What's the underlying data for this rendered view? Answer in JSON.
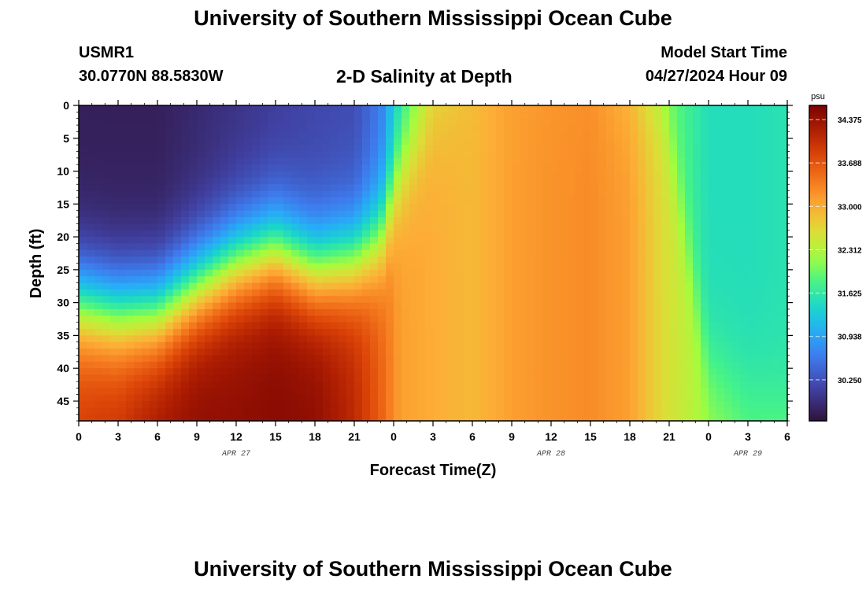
{
  "page": {
    "title": "University of Southern Mississippi Ocean Cube",
    "footer_title": "University of Southern Mississippi Ocean Cube",
    "station": "USMR1",
    "coords": "30.0770N  88.5830W",
    "plot_title": "2-D Salinity at Depth",
    "model_start_label": "Model Start Time",
    "model_start_value": "04/27/2024 Hour 09"
  },
  "chart_data": {
    "type": "heatmap",
    "xlabel": "Forecast Time(Z)",
    "ylabel": "Depth (ft)",
    "ylim": [
      0,
      48
    ],
    "y_ticks": [
      0,
      5,
      10,
      15,
      20,
      25,
      30,
      35,
      40,
      45
    ],
    "x_hours": [
      0,
      54
    ],
    "x_ticks": [
      "0",
      "3",
      "6",
      "9",
      "12",
      "15",
      "18",
      "21",
      "0",
      "3",
      "6",
      "9",
      "12",
      "15",
      "18",
      "21",
      "0",
      "3",
      "6"
    ],
    "date_labels": [
      {
        "label": "APR 27",
        "hour": 12
      },
      {
        "label": "APR 28",
        "hour": 36
      },
      {
        "label": "APR 29",
        "hour": 51
      }
    ],
    "colorbar": {
      "unit": "psu",
      "min": 29.6,
      "max": 34.6,
      "ticks": [
        "34.375",
        "33.688",
        "33.000",
        "32.312",
        "31.625",
        "30.938",
        "30.250"
      ]
    },
    "columns": [
      {
        "hour": 0,
        "top": 29.75,
        "interface_depth": 30.0,
        "bottom": 33.9
      },
      {
        "hour": 3,
        "top": 29.75,
        "interface_depth": 31.5,
        "bottom": 34.0
      },
      {
        "hour": 6,
        "top": 29.75,
        "interface_depth": 31.5,
        "bottom": 34.3
      },
      {
        "hour": 9,
        "top": 29.85,
        "interface_depth": 27.5,
        "bottom": 34.45
      },
      {
        "hour": 12,
        "top": 29.95,
        "interface_depth": 24.0,
        "bottom": 34.45
      },
      {
        "hour": 15,
        "top": 30.05,
        "interface_depth": 22.0,
        "bottom": 34.5
      },
      {
        "hour": 18,
        "top": 30.15,
        "interface_depth": 25.0,
        "bottom": 34.45
      },
      {
        "hour": 21,
        "top": 30.2,
        "interface_depth": 23.5,
        "bottom": 34.1
      },
      {
        "hour": 23,
        "top": 30.6,
        "interface_depth": 20.0,
        "bottom": 33.6
      },
      {
        "hour": 24.5,
        "top": 31.5,
        "interface_depth": 10.0,
        "bottom": 33.1
      },
      {
        "hour": 27,
        "top": 32.5,
        "interface_depth": 2.0,
        "bottom": 33.0
      },
      {
        "hour": 30,
        "top": 32.85,
        "interface_depth": 0.0,
        "bottom": 32.9
      },
      {
        "hour": 33,
        "top": 33.1,
        "interface_depth": 0.0,
        "bottom": 33.1
      },
      {
        "hour": 36,
        "top": 33.15,
        "interface_depth": 0.0,
        "bottom": 33.2
      },
      {
        "hour": 39,
        "top": 33.2,
        "interface_depth": 0.0,
        "bottom": 33.25
      },
      {
        "hour": 42,
        "top": 32.8,
        "interface_depth": 0.0,
        "bottom": 33.1
      },
      {
        "hour": 44.5,
        "top": 32.0,
        "interface_depth": 0.0,
        "bottom": 32.6
      },
      {
        "hour": 48,
        "top": 31.5,
        "interface_depth": 40.0,
        "bottom": 32.2
      },
      {
        "hour": 51,
        "top": 31.5,
        "interface_depth": 44.0,
        "bottom": 31.95
      },
      {
        "hour": 54,
        "top": 31.55,
        "interface_depth": 46.0,
        "bottom": 32.0
      }
    ]
  }
}
